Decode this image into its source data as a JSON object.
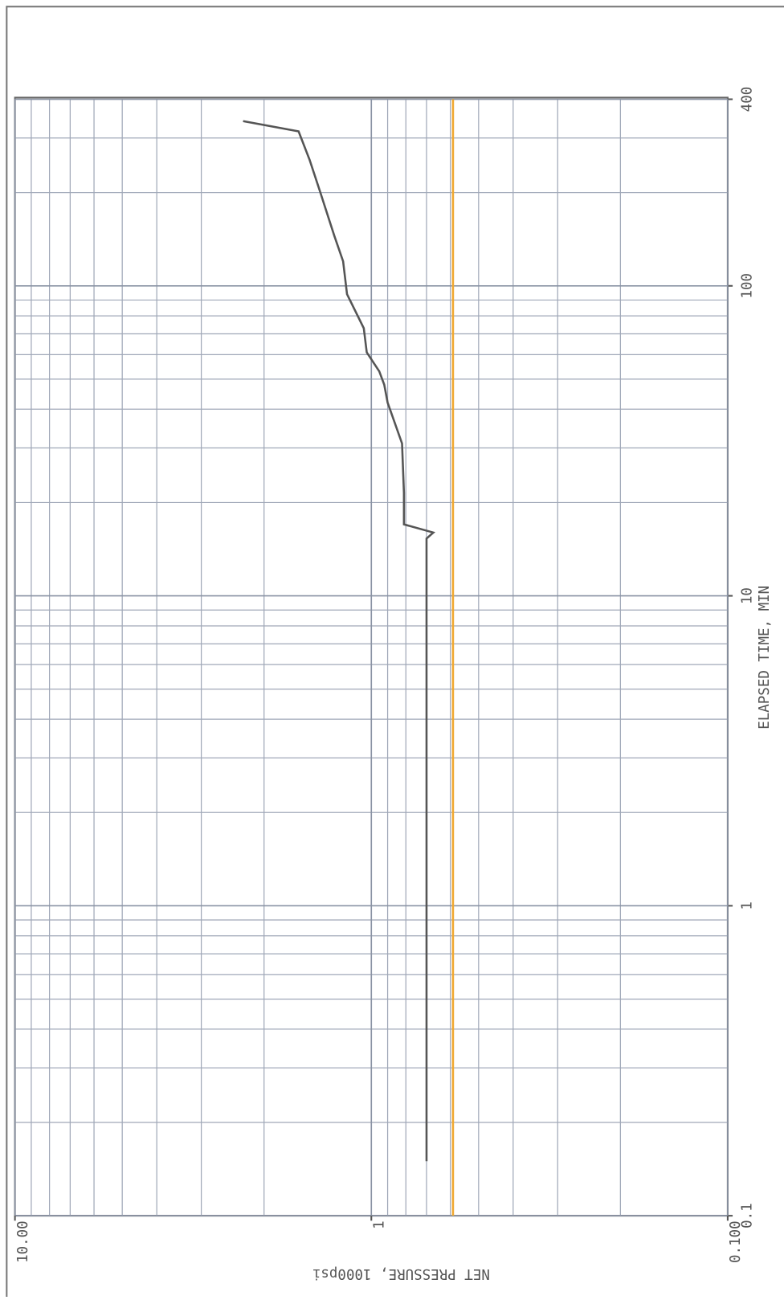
{
  "chart_data": {
    "type": "line",
    "xlabel": "ELAPSED TIME, MIN",
    "ylabel": "NET PRESSURE, 1000psi",
    "xscale": "log",
    "yscale": "log",
    "grid": true,
    "xlim": [
      0.1,
      400
    ],
    "xticks": [
      {
        "value": 0.1,
        "label": "0.1"
      },
      1,
      10,
      100,
      400
    ],
    "ylim": [
      0.1,
      10
    ],
    "yticks": [
      {
        "value": 0.1,
        "label": "0.100"
      },
      1,
      {
        "value": 10,
        "label": "10.00"
      }
    ],
    "series": [
      {
        "color": "#555555",
        "x": [
          0.15,
          15.3,
          16,
          17,
          21.5,
          31,
          42,
          48,
          53,
          61,
          73,
          94,
          120,
          145,
          200,
          255,
          315,
          340
        ],
        "values": [
          0.7,
          0.7,
          0.67,
          0.81,
          0.81,
          0.82,
          0.9,
          0.92,
          0.95,
          1.03,
          1.05,
          1.17,
          1.2,
          1.27,
          1.39,
          1.49,
          1.6,
          2.29
        ]
      },
      {
        "color": "#f0a830",
        "x": [
          0.1,
          400
        ],
        "values": [
          0.59,
          0.59
        ]
      }
    ]
  }
}
